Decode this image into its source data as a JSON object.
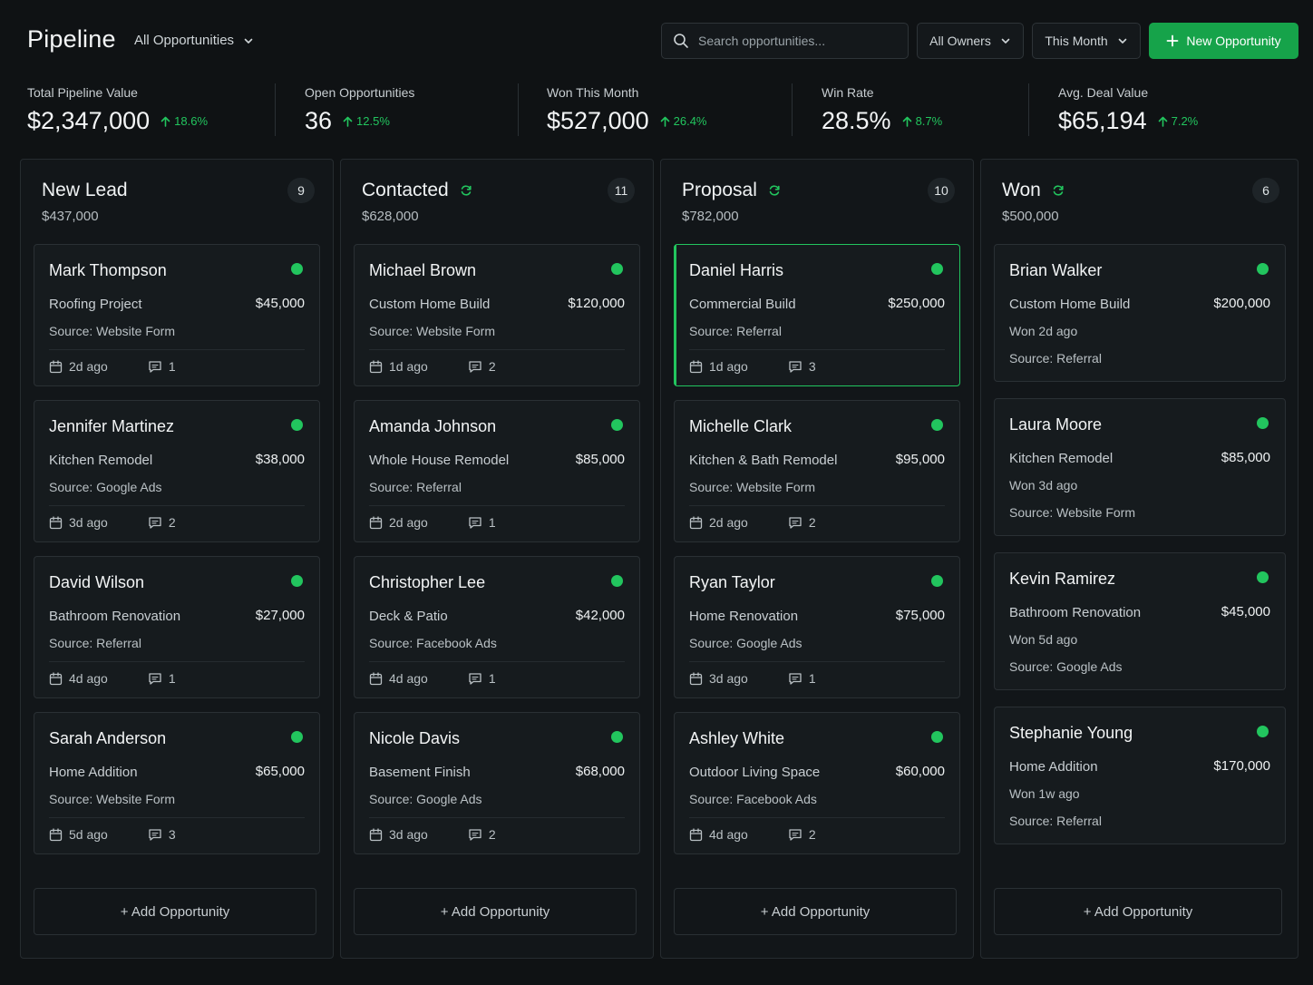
{
  "header": {
    "title": "Pipeline",
    "view": "All Opportunities",
    "search_placeholder": "Search opportunities...",
    "owner_filter": "All Owners",
    "period_filter": "This Month",
    "new_button": "New Opportunity"
  },
  "metrics": [
    {
      "label": "Total Pipeline Value",
      "value": "$2,347,000",
      "change": "18.6%"
    },
    {
      "label": "Open Opportunities",
      "value": "36",
      "change": "12.5%"
    },
    {
      "label": "Won This Month",
      "value": "$527,000",
      "change": "26.4%"
    },
    {
      "label": "Win Rate",
      "value": "28.5%",
      "change": "8.7%"
    },
    {
      "label": "Avg. Deal Value",
      "value": "$65,194",
      "change": "7.2%"
    }
  ],
  "columns": [
    {
      "title": "New Lead",
      "total": "$437,000",
      "count": "9",
      "add_label": "+ Add Opportunity",
      "cards": [
        {
          "name": "Mark Thompson",
          "project": "Roofing Project",
          "amount": "$45,000",
          "source": "Source: Website Form",
          "age": "2d ago",
          "comments": "1"
        },
        {
          "name": "Jennifer Martinez",
          "project": "Kitchen Remodel",
          "amount": "$38,000",
          "source": "Source: Google Ads",
          "age": "3d ago",
          "comments": "2"
        },
        {
          "name": "David Wilson",
          "project": "Bathroom Renovation",
          "amount": "$27,000",
          "source": "Source: Referral",
          "age": "4d ago",
          "comments": "1"
        },
        {
          "name": "Sarah Anderson",
          "project": "Home Addition",
          "amount": "$65,000",
          "source": "Source: Website Form",
          "age": "5d ago",
          "comments": "3"
        }
      ]
    },
    {
      "title": "Contacted",
      "total": "$628,000",
      "count": "11",
      "add_label": "+ Add Opportunity",
      "cards": [
        {
          "name": "Michael Brown",
          "project": "Custom Home Build",
          "amount": "$120,000",
          "source": "Source: Website Form",
          "age": "1d ago",
          "comments": "2"
        },
        {
          "name": "Amanda Johnson",
          "project": "Whole House Remodel",
          "amount": "$85,000",
          "source": "Source: Referral",
          "age": "2d ago",
          "comments": "1"
        },
        {
          "name": "Christopher Lee",
          "project": "Deck & Patio",
          "amount": "$42,000",
          "source": "Source: Facebook Ads",
          "age": "4d ago",
          "comments": "1"
        },
        {
          "name": "Nicole Davis",
          "project": "Basement Finish",
          "amount": "$68,000",
          "source": "Source: Google Ads",
          "age": "3d ago",
          "comments": "2"
        }
      ]
    },
    {
      "title": "Proposal",
      "total": "$782,000",
      "count": "10",
      "add_label": "+ Add Opportunity",
      "cards": [
        {
          "name": "Daniel Harris",
          "project": "Commercial Build",
          "amount": "$250,000",
          "source": "Source: Referral",
          "age": "1d ago",
          "comments": "3"
        },
        {
          "name": "Michelle Clark",
          "project": "Kitchen & Bath Remodel",
          "amount": "$95,000",
          "source": "Source: Website Form",
          "age": "2d ago",
          "comments": "2"
        },
        {
          "name": "Ryan Taylor",
          "project": "Home Renovation",
          "amount": "$75,000",
          "source": "Source: Google Ads",
          "age": "3d ago",
          "comments": "1"
        },
        {
          "name": "Ashley White",
          "project": "Outdoor Living Space",
          "amount": "$60,000",
          "source": "Source: Facebook Ads",
          "age": "4d ago",
          "comments": "2"
        }
      ]
    },
    {
      "title": "Won",
      "total": "$500,000",
      "count": "6",
      "add_label": "+ Add Opportunity",
      "cards": [
        {
          "name": "Brian Walker",
          "project": "Custom Home Build",
          "amount": "$200,000",
          "won": "Won 2d ago",
          "source": "Source: Referral"
        },
        {
          "name": "Laura Moore",
          "project": "Kitchen Remodel",
          "amount": "$85,000",
          "won": "Won 3d ago",
          "source": "Source: Website Form"
        },
        {
          "name": "Kevin Ramirez",
          "project": "Bathroom Renovation",
          "amount": "$45,000",
          "won": "Won 5d ago",
          "source": "Source: Google Ads"
        },
        {
          "name": "Stephanie Young",
          "project": "Home Addition",
          "amount": "$170,000",
          "won": "Won 1w ago",
          "source": "Source: Referral"
        }
      ]
    }
  ],
  "colors": {
    "accent": "#16a34a",
    "status_dot": "#22c55e",
    "background": "#0f1214"
  }
}
